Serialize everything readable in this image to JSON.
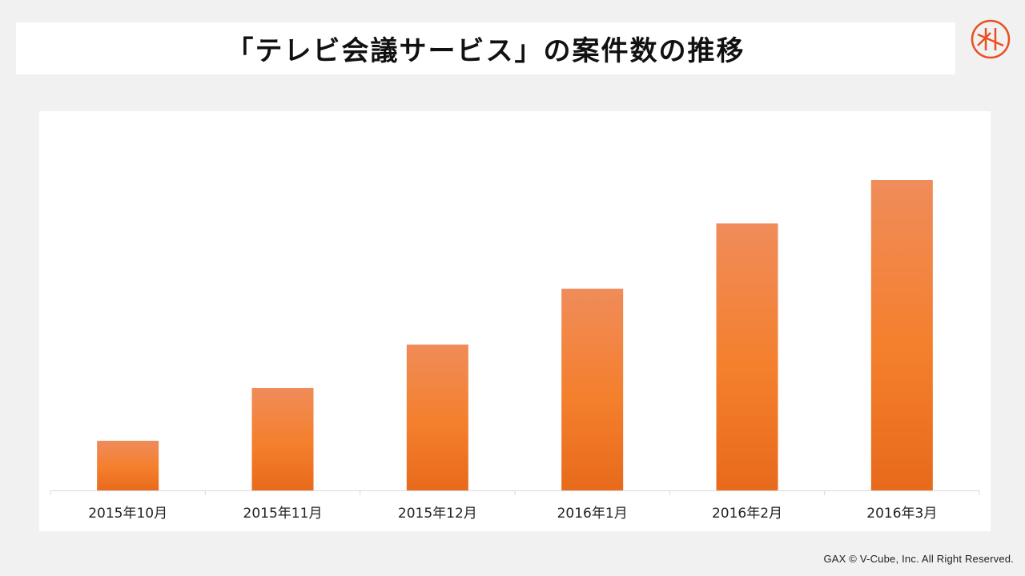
{
  "slide": {
    "title": "「テレビ会議サービス」の案件数の推移",
    "footer": "GAX © V-Cube, Inc. All Right Reserved.",
    "logo_icon": "gax-circle-logo-icon",
    "accent_color": "#e8501f"
  },
  "chart_data": {
    "type": "bar",
    "title": "",
    "xlabel": "",
    "ylabel": "",
    "categories": [
      "2015年10月",
      "2015年11月",
      "2015年12月",
      "2016年1月",
      "2016年2月",
      "2016年3月"
    ],
    "values": [
      16,
      33,
      47,
      65,
      86,
      100
    ],
    "ylim": [
      0,
      100
    ],
    "grid": false,
    "legend": "none",
    "bar_color_top": "#f08c5a",
    "bar_color_mid": "#f47f2c",
    "bar_color_bottom": "#e86a1c"
  }
}
